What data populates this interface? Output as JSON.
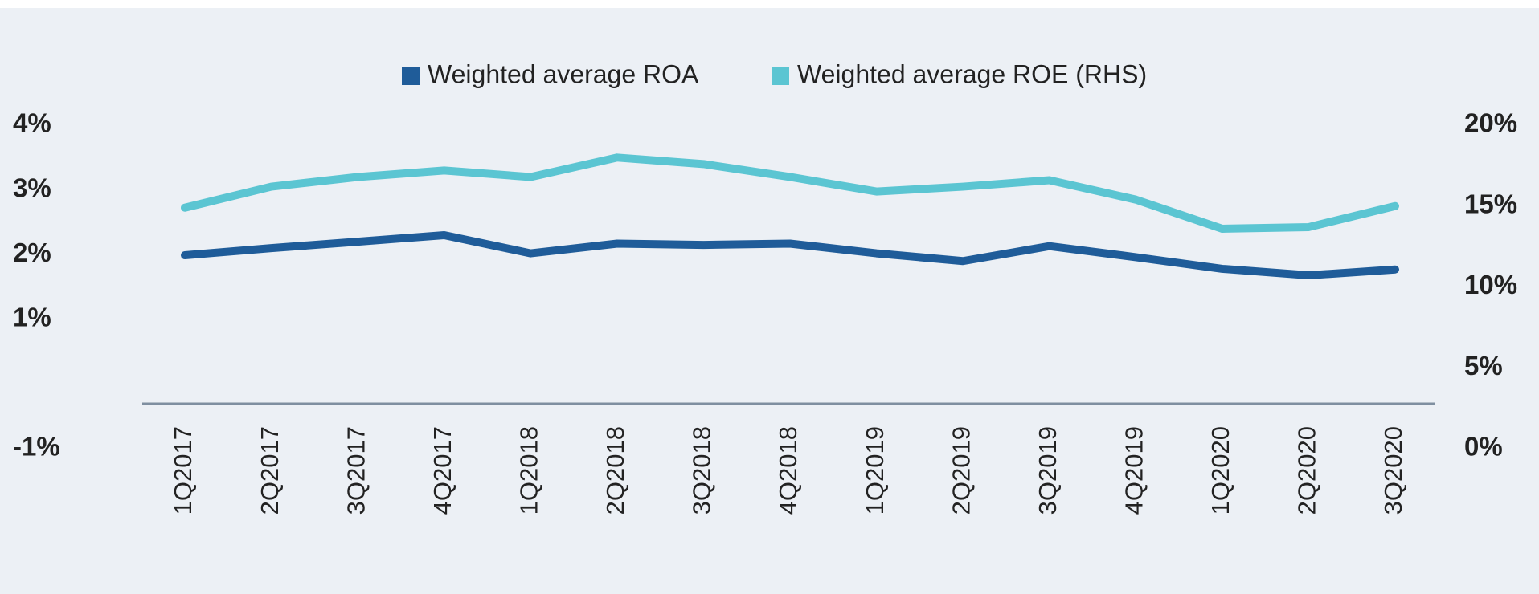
{
  "chart_data": {
    "type": "line",
    "categories": [
      "1Q2017",
      "2Q2017",
      "3Q2017",
      "4Q2017",
      "1Q2018",
      "2Q2018",
      "3Q2018",
      "4Q2018",
      "1Q2019",
      "2Q2019",
      "3Q2019",
      "4Q2019",
      "1Q2020",
      "2Q2020",
      "3Q2020"
    ],
    "series": [
      {
        "name": "Weighted average ROA",
        "color": "#1f5c99",
        "values": [
          1.99,
          2.1,
          2.2,
          2.3,
          2.02,
          2.17,
          2.15,
          2.17,
          2.02,
          1.9,
          2.13,
          1.96,
          1.78,
          1.68,
          1.77
        ]
      },
      {
        "name": "Weighted average ROE (RHS)",
        "color": "#5bc5d2",
        "axis": "y2",
        "values": [
          14.9,
          16.2,
          16.8,
          17.2,
          16.8,
          18.0,
          17.6,
          16.8,
          15.9,
          16.2,
          16.6,
          15.4,
          13.6,
          13.7,
          15.0
        ]
      }
    ],
    "ylim": [
      -1,
      4
    ],
    "yticks": [
      {
        "value": -1,
        "label": "-1%"
      },
      {
        "value": 1,
        "label": "1%"
      },
      {
        "value": 2,
        "label": "2%"
      },
      {
        "value": 3,
        "label": "3%"
      },
      {
        "value": 4,
        "label": "4%"
      }
    ],
    "y2lim": [
      0,
      20
    ],
    "y2ticks": [
      {
        "value": 0,
        "label": "0%"
      },
      {
        "value": 5,
        "label": "5%"
      },
      {
        "value": 10,
        "label": "10%"
      },
      {
        "value": 15,
        "label": "15%"
      },
      {
        "value": 20,
        "label": "20%"
      }
    ],
    "legend": "top"
  }
}
